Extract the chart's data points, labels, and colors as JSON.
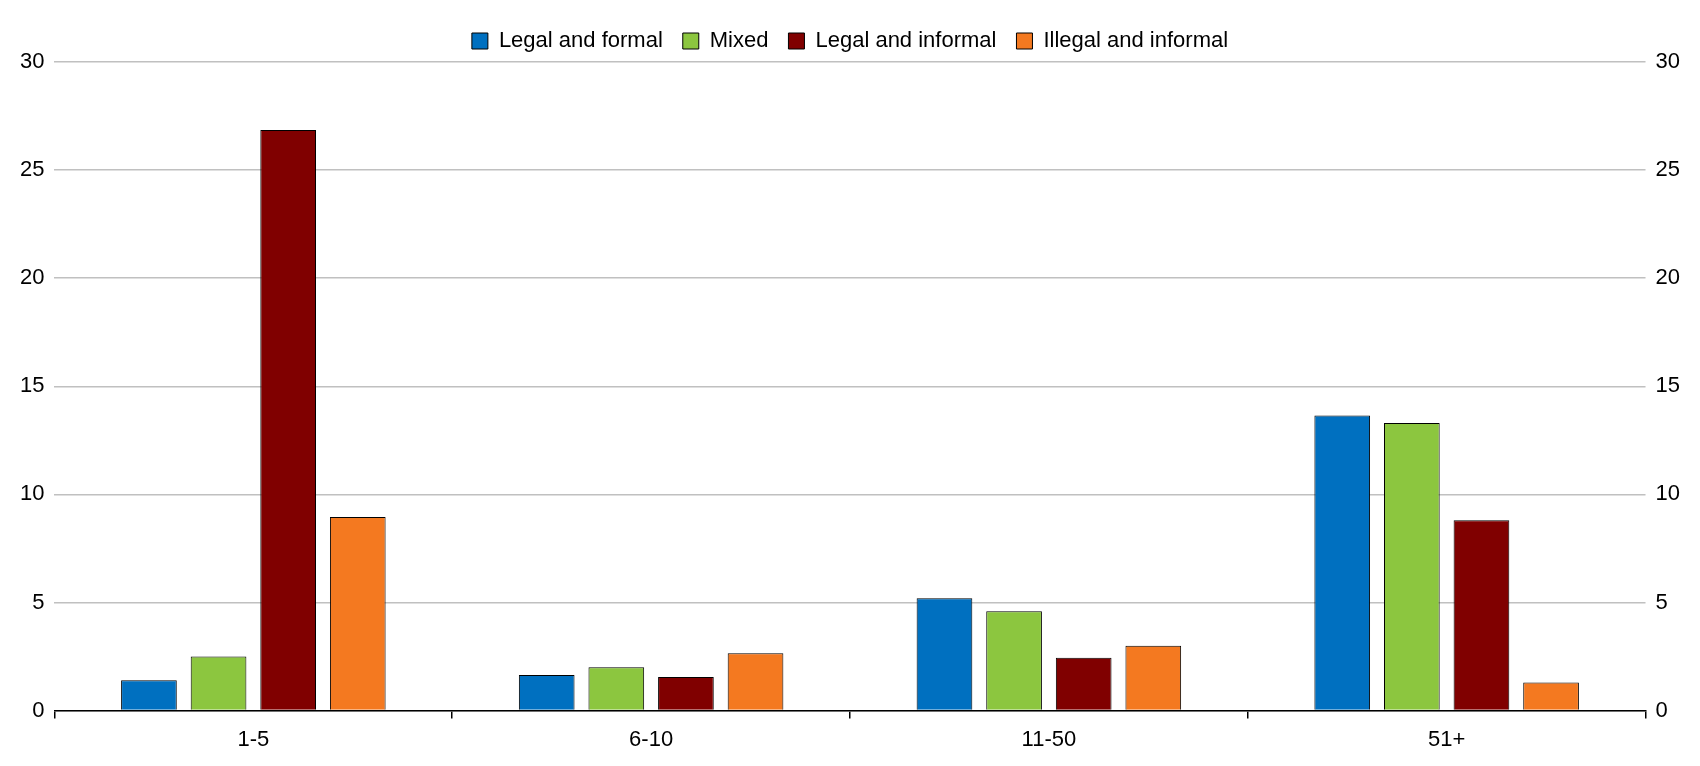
{
  "chart_data": {
    "type": "bar",
    "categories": [
      "1-5",
      "6-10",
      "11-50",
      "51+"
    ],
    "series": [
      {
        "name": "Legal and formal",
        "color": "#0070c0",
        "values": [
          1.4,
          1.65,
          5.2,
          13.65
        ]
      },
      {
        "name": "Mixed",
        "color": "#8cc63f",
        "values": [
          2.5,
          2.0,
          4.6,
          13.3
        ]
      },
      {
        "name": "Legal and informal",
        "color": "#800000",
        "values": [
          26.85,
          1.55,
          2.45,
          8.8
        ]
      },
      {
        "name": "Illegal and informal",
        "color": "#f47920",
        "values": [
          8.95,
          2.65,
          3.0,
          1.3
        ]
      }
    ],
    "ylim": [
      0,
      30
    ],
    "yticks": [
      0,
      5,
      10,
      15,
      20,
      25,
      30
    ],
    "y2lim": [
      0,
      30
    ],
    "y2ticks": [
      0,
      5,
      10,
      15,
      20,
      25,
      30
    ],
    "grid": "y",
    "legend": "top"
  }
}
